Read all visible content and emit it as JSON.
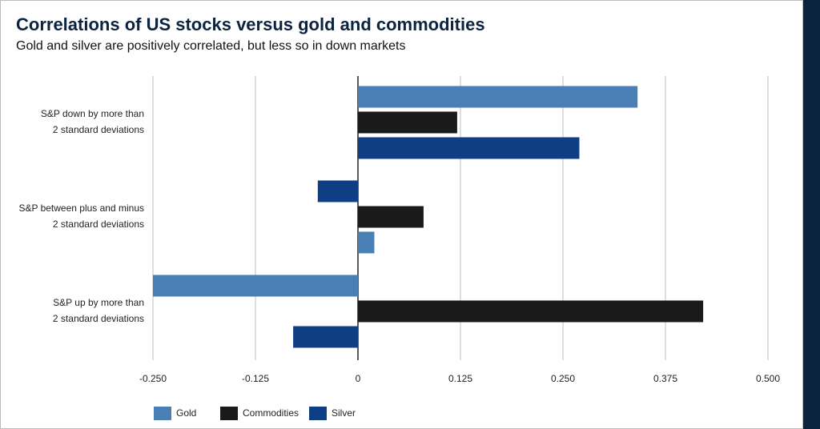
{
  "chart_data": {
    "type": "hbar",
    "title": "Correlations of US stocks versus gold and commodities",
    "subtitle": "Gold and silver are positively correlated, but less so in down markets",
    "categories": [
      "S&P down by more than\n2 standard deviations",
      "S&P between plus and minus\n2 standard deviations",
      "S&P up by more than\n2 standard deviations"
    ],
    "series": [
      {
        "name": "Gold",
        "color": "#4a7fb5",
        "values": [
          0.341,
          0.02,
          -0.25
        ]
      },
      {
        "name": "Commodities",
        "color": "#1a1a1a",
        "values": [
          0.121,
          0.08,
          0.421
        ]
      },
      {
        "name": "Silver",
        "color": "#0e3f85",
        "values": [
          0.27,
          -0.049,
          -0.079
        ]
      }
    ],
    "xlim": [
      -0.25,
      0.5
    ],
    "xticks": [
      {
        "value": -0.25,
        "label": "-0.250"
      },
      {
        "value": -0.125,
        "label": "-0.125"
      },
      0,
      {
        "value": 0.125,
        "label": "0.125"
      },
      {
        "value": 0.25,
        "label": "0.250"
      },
      {
        "value": 0.375,
        "label": "0.375"
      },
      {
        "value": 0.5,
        "label": "0.500"
      }
    ],
    "grid": true
  }
}
